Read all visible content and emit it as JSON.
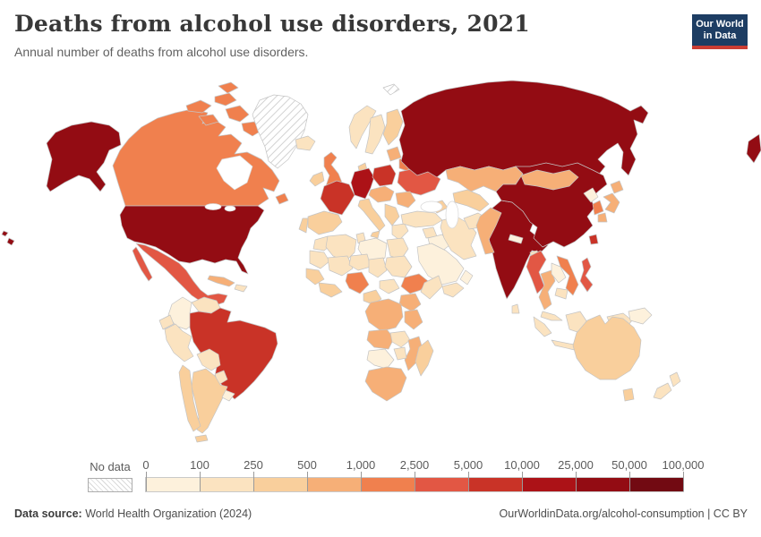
{
  "header": {
    "title": "Deaths from alcohol use disorders, 2021",
    "subtitle": "Annual number of deaths from alcohol use disorders.",
    "logo_line1": "Our World",
    "logo_line2": "in Data",
    "logo_bg": "#1d3d63",
    "logo_accent": "#cb3d33"
  },
  "legend": {
    "no_data_label": "No data",
    "tick_labels": [
      "0",
      "100",
      "250",
      "500",
      "1,000",
      "2,500",
      "5,000",
      "10,000",
      "25,000",
      "50,000",
      "100,000"
    ]
  },
  "footer": {
    "source_label": "Data source:",
    "source_value": " World Health Organization (2024)",
    "credit": "OurWorldinData.org/alcohol-consumption | CC BY"
  },
  "chart_data": {
    "type": "heatmap",
    "subtype": "world-choropleth-map",
    "title": "Deaths from alcohol use disorders, 2021",
    "unit": "annual deaths from alcohol use disorders",
    "legend_position": "bottom",
    "bin_edges": [
      0,
      100,
      250,
      500,
      1000,
      2500,
      5000,
      10000,
      25000,
      50000,
      100000
    ],
    "bin_labels": [
      "0–100",
      "100–250",
      "250–500",
      "500–1,000",
      "1,000–2,500",
      "2,500–5,000",
      "5,000–10,000",
      "10,000–25,000",
      "25,000–50,000",
      "50,000–100,000"
    ],
    "bin_colors": [
      "#FDF1DC",
      "#FBE3C0",
      "#F9CF9C",
      "#F6AF77",
      "#F0804E",
      "#E25744",
      "#C93327",
      "#AC1217",
      "#930C13",
      "#720A12"
    ],
    "no_data_pattern": "diagonal-hatch",
    "border_color": "#c4c4c4",
    "regions": {
      "usa": 8,
      "canada": 4,
      "greenland": -1,
      "iceland": 1,
      "mexico": 5,
      "cuba": 3,
      "hispaniola": 1,
      "guatemala": 1,
      "honduras-nicaragua": 1,
      "costa-rica-panama": 0,
      "colombia": 0,
      "venezuela": 1,
      "guyanas": 1,
      "ecuador": 1,
      "peru": 1,
      "brazil": 6,
      "bolivia": 1,
      "paraguay": 1,
      "chile": 2,
      "argentina": 2,
      "uruguay": 0,
      "norway": 1,
      "sweden": 1,
      "finland": 2,
      "denmark": 2,
      "uk": 4,
      "ireland": 2,
      "germany": 7,
      "france": 6,
      "spain": 2,
      "portugal": 2,
      "italy": 2,
      "central-europe": 3,
      "poland": 6,
      "baltics": 3,
      "belarus": 4,
      "ukraine": 5,
      "romania": 3,
      "balkans": 2,
      "greece": 1,
      "russia": 8,
      "svalbard": -1,
      "kazakhstan": 3,
      "central-asia": 2,
      "caucasus": 2,
      "turkey": 1,
      "syria": 1,
      "iraq": 0,
      "iran": 1,
      "afghanistan": 1,
      "pakistan": 3,
      "saudi-arabia": 0,
      "yemen": 1,
      "oman": 0,
      "india": 8,
      "nepal": 0,
      "bangladesh": 1,
      "sri-lanka": 1,
      "china": 8,
      "mongolia": 3,
      "taiwan": 6,
      "north-korea": 0,
      "south-korea": 4,
      "japan": 3,
      "myanmar": 5,
      "thailand": 3,
      "laos": 0,
      "vietnam": 4,
      "cambodia": 1,
      "malaysia": 1,
      "philippines": 5,
      "indonesia": 1,
      "papua-new-guinea": 0,
      "morocco": 1,
      "algeria": 1,
      "tunisia": 1,
      "libya": 0,
      "egypt": 1,
      "mauritania": 1,
      "mali": 1,
      "niger": 1,
      "chad": 1,
      "sudan": 1,
      "senegal-guinea": 2,
      "west-africa-coast": 2,
      "nigeria": 4,
      "cameroon": 2,
      "central-african-republic": 1,
      "ethiopia": 4,
      "somalia": 1,
      "kenya-uganda": 3,
      "drc": 3,
      "tanzania": 3,
      "angola": 3,
      "zambia": 1,
      "mozambique": 3,
      "zimbabwe": 1,
      "namibia-botswana": 0,
      "south-africa": 3,
      "madagascar": 2,
      "australia": 2,
      "new-zealand": 1
    }
  }
}
